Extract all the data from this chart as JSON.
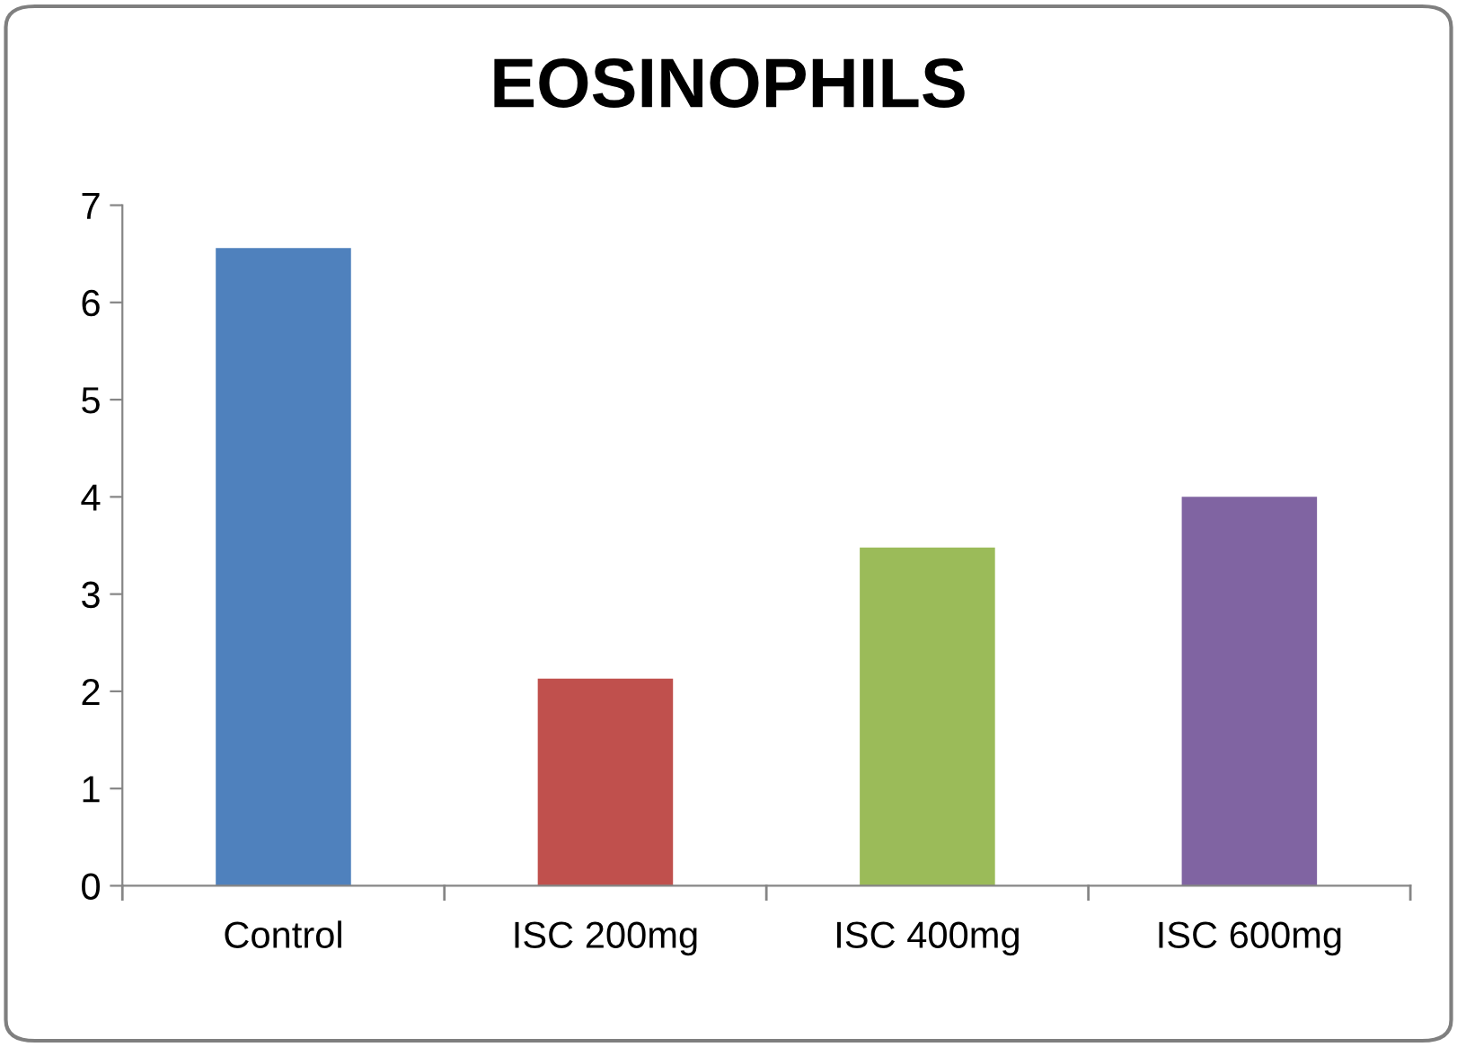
{
  "chart_data": {
    "type": "bar",
    "title": "EOSINOPHILS",
    "categories": [
      "Control",
      "ISC 200mg",
      "ISC 400mg",
      "ISC 600mg"
    ],
    "values": [
      6.56,
      2.13,
      3.48,
      4.0
    ],
    "colors": [
      "#4f81bd",
      "#c0504d",
      "#9bbb59",
      "#8064a2"
    ],
    "ylim": [
      0,
      7
    ],
    "yticks": [
      0,
      1,
      2,
      3,
      4,
      5,
      6,
      7
    ],
    "grid": false,
    "legend": false
  }
}
